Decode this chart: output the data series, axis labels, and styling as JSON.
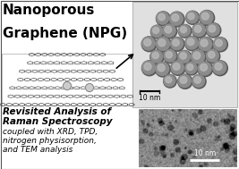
{
  "background_color": "#ffffff",
  "title_line1": "Nanoporous",
  "title_line2": "Graphene (NPG)",
  "title_fontsize": 11.0,
  "subtitle_bold_line1": "Revisited Analysis of",
  "subtitle_bold_line2": "Raman Spectroscopy",
  "subtitle_italic_lines": [
    "coupled with XRD, TPD,",
    "nitrogen physisorption,",
    "and TEM analysis"
  ],
  "subtitle_fontsize": 6.5,
  "scale_bar_top_right": "10 nm",
  "scale_bar_bottom_right": "10 nm",
  "fig_width": 2.67,
  "fig_height": 1.89,
  "dpi": 100,
  "npg_bg_color": "#c8c8c8",
  "graphene_line_color": "#2a2a2a",
  "sphere_dark": "#5a5a5a",
  "sphere_mid": "#8c8c8c",
  "sphere_light": "#b8b8b8",
  "sphere_bg": "#aaaaaa"
}
